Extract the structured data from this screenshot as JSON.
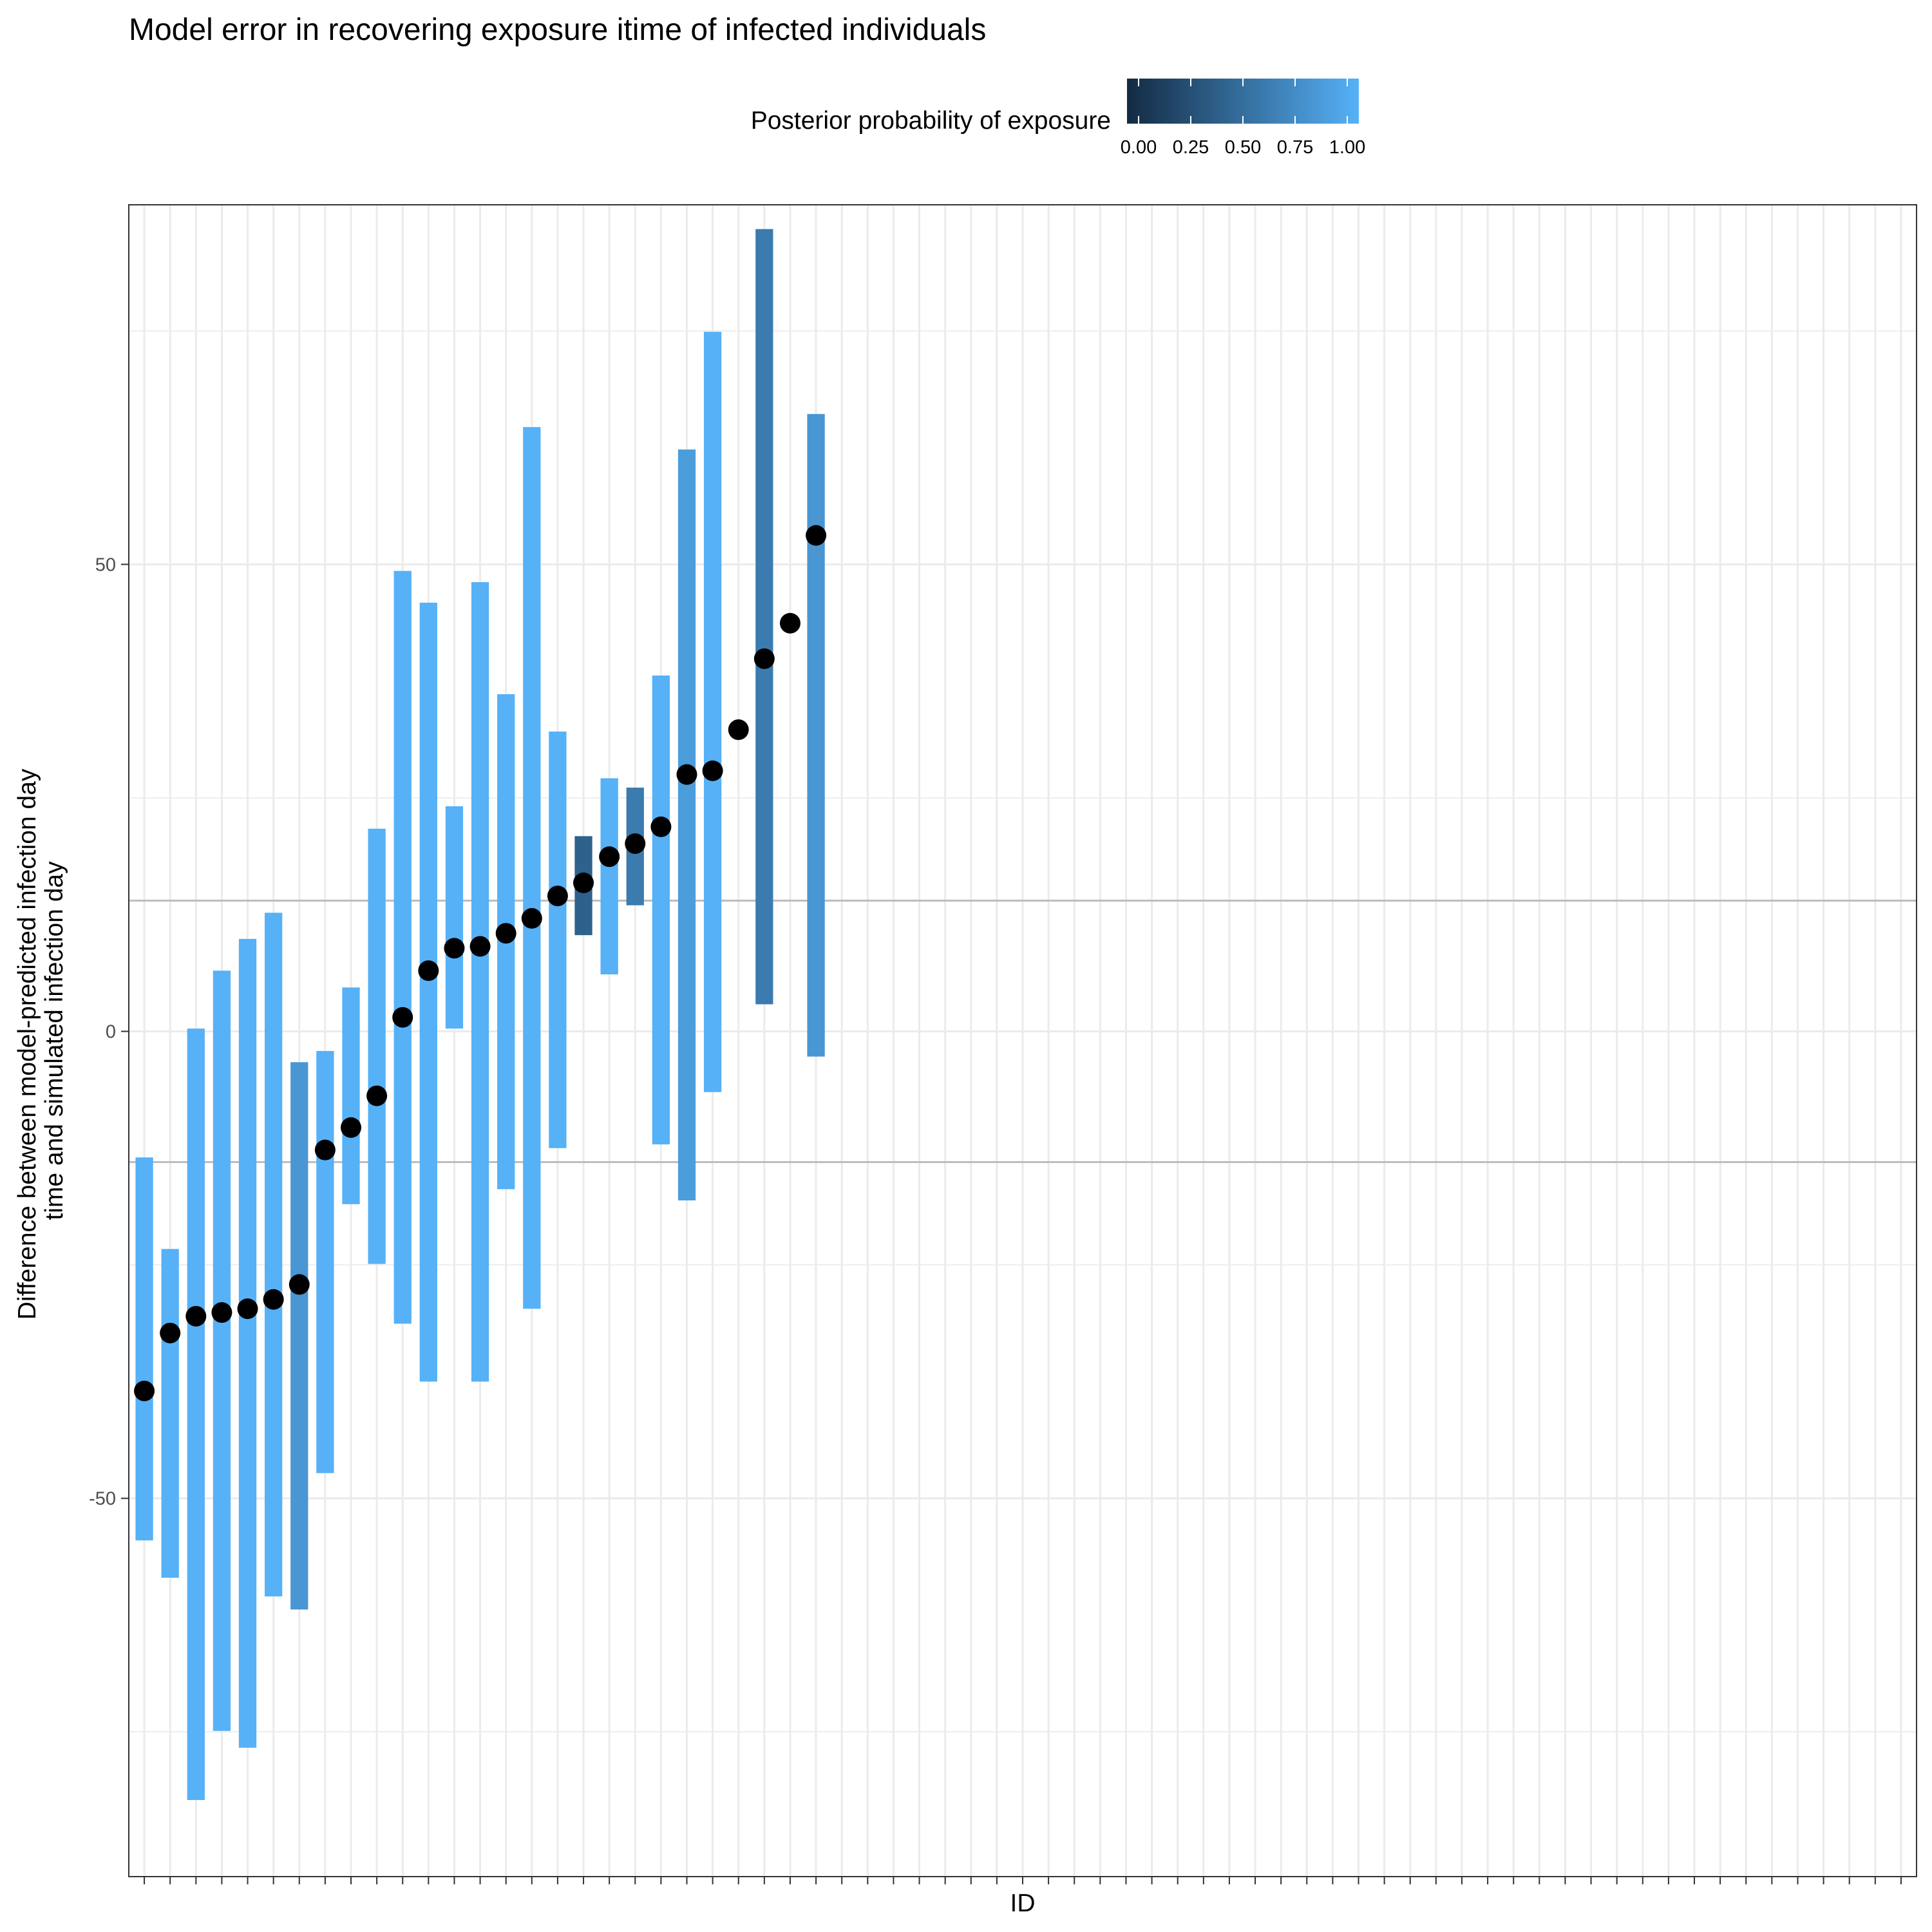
{
  "chart_data": {
    "type": "errorbar-scatter",
    "title": "Model error in recovering exposure itime of infected individuals",
    "xlabel": "ID",
    "ylabel_lines": [
      "Difference between model-predicted infection day",
      "time and simulated infection day"
    ],
    "ylim": [
      -90.5,
      88.5
    ],
    "y_ticks": [
      -50,
      0,
      50
    ],
    "x_count": 69,
    "reference_lines": [
      14,
      -14
    ],
    "grid": true,
    "legend": {
      "title": "Posterior probability of exposure",
      "position": "top",
      "ticks": [
        0.0,
        0.25,
        0.5,
        0.75,
        1.0
      ],
      "tick_labels": [
        "0.00",
        "0.25",
        "0.50",
        "0.75",
        "1.00"
      ],
      "color_low": "#132B43",
      "color_high": "#56B1F7"
    },
    "points": [
      {
        "id": 1,
        "y": -38.5,
        "lower": -54.5,
        "upper": -13.5,
        "prob": 1.0
      },
      {
        "id": 2,
        "y": -32.3,
        "lower": -58.5,
        "upper": -23.3,
        "prob": 1.0
      },
      {
        "id": 3,
        "y": -30.5,
        "lower": -82.3,
        "upper": 0.3,
        "prob": 1.0
      },
      {
        "id": 4,
        "y": -30.1,
        "lower": -74.9,
        "upper": 6.5,
        "prob": 1.0
      },
      {
        "id": 5,
        "y": -29.7,
        "lower": -76.7,
        "upper": 9.9,
        "prob": 1.0
      },
      {
        "id": 6,
        "y": -28.7,
        "lower": -60.5,
        "upper": 12.7,
        "prob": 1.0
      },
      {
        "id": 7,
        "y": -27.1,
        "lower": -61.9,
        "upper": -3.3,
        "prob": 0.8
      },
      {
        "id": 8,
        "y": -12.7,
        "lower": -47.3,
        "upper": -2.1,
        "prob": 1.0
      },
      {
        "id": 9,
        "y": -10.3,
        "lower": -18.5,
        "upper": 4.7,
        "prob": 1.0
      },
      {
        "id": 10,
        "y": -6.9,
        "lower": -24.9,
        "upper": 21.7,
        "prob": 1.0
      },
      {
        "id": 11,
        "y": 1.5,
        "lower": -31.3,
        "upper": 49.3,
        "prob": 1.0
      },
      {
        "id": 12,
        "y": 6.5,
        "lower": -37.5,
        "upper": 45.9,
        "prob": 1.0
      },
      {
        "id": 13,
        "y": 8.9,
        "lower": 0.3,
        "upper": 24.1,
        "prob": 1.0
      },
      {
        "id": 14,
        "y": 9.1,
        "lower": -37.5,
        "upper": 48.1,
        "prob": 1.0
      },
      {
        "id": 15,
        "y": 10.5,
        "lower": -16.9,
        "upper": 36.1,
        "prob": 1.0
      },
      {
        "id": 16,
        "y": 12.1,
        "lower": -29.7,
        "upper": 64.7,
        "prob": 1.0
      },
      {
        "id": 17,
        "y": 14.5,
        "lower": -12.5,
        "upper": 32.1,
        "prob": 1.0
      },
      {
        "id": 18,
        "y": 15.9,
        "lower": 10.3,
        "upper": 20.9,
        "prob": 0.4
      },
      {
        "id": 19,
        "y": 18.7,
        "lower": 6.1,
        "upper": 27.1,
        "prob": 1.0
      },
      {
        "id": 20,
        "y": 20.1,
        "lower": 13.5,
        "upper": 26.1,
        "prob": 0.6
      },
      {
        "id": 21,
        "y": 21.9,
        "lower": -12.1,
        "upper": 38.1,
        "prob": 1.0
      },
      {
        "id": 22,
        "y": 27.5,
        "lower": -18.1,
        "upper": 62.3,
        "prob": 0.85
      },
      {
        "id": 23,
        "y": 27.9,
        "lower": -6.5,
        "upper": 74.9,
        "prob": 1.0
      },
      {
        "id": 24,
        "y": 32.3,
        "lower": null,
        "upper": null,
        "prob": null
      },
      {
        "id": 25,
        "y": 39.9,
        "lower": 2.9,
        "upper": 85.9,
        "prob": 0.6
      },
      {
        "id": 26,
        "y": 43.7,
        "lower": null,
        "upper": null,
        "prob": null
      },
      {
        "id": 27,
        "y": 53.1,
        "lower": -2.7,
        "upper": 66.1,
        "prob": 0.8
      }
    ]
  }
}
